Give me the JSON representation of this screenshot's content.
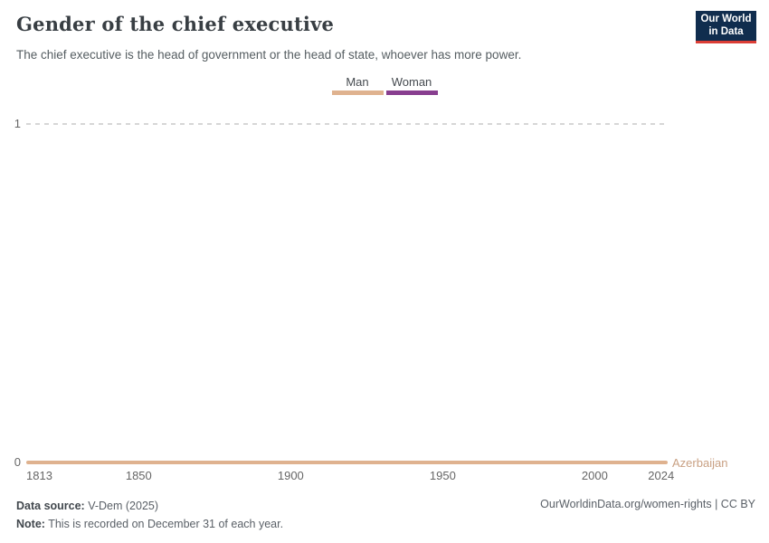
{
  "header": {
    "title": "Gender of the chief executive",
    "subtitle": "The chief executive is the head of government or the head of state, whoever has more power.",
    "logo": {
      "line1": "Our World",
      "line2": "in Data",
      "background_color": "#102d4e",
      "accent_color": "#dc3e36"
    }
  },
  "legend": {
    "items": [
      {
        "label": "Man",
        "color": "#dfb28f"
      },
      {
        "label": "Woman",
        "color": "#883e8f"
      }
    ]
  },
  "chart_data": {
    "type": "line",
    "title": "Gender of the chief executive",
    "xlim": [
      1813,
      2024
    ],
    "ylim": [
      0,
      1
    ],
    "x_ticks": [
      "1813",
      "1850",
      "1900",
      "1950",
      "2000",
      "2024"
    ],
    "y_ticks": [
      "0",
      "1"
    ],
    "grid": "dashed horizontal gridlines, legend top center",
    "series": [
      {
        "name": "Azerbaijan",
        "legend_category": "Man",
        "color": "#dfb28f",
        "label_color": "#c9a083",
        "x_start": 1813,
        "x_end": 2024,
        "value": 0,
        "description": "Constant value 0 (Man) for every year from 1813 through 2024"
      }
    ]
  },
  "footer": {
    "data_source_label": "Data source:",
    "data_source_value": " V-Dem (2025)",
    "note_label": "Note:",
    "note_value": " This is recorded on December 31 of each year.",
    "attribution": "OurWorldinData.org/women-rights | CC BY"
  }
}
